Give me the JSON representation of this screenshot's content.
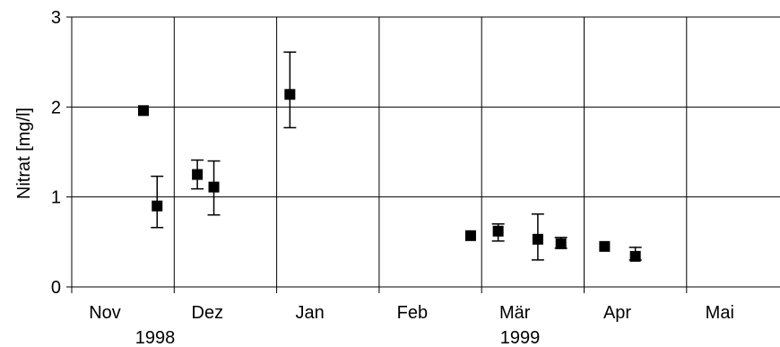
{
  "chart_data": {
    "type": "scatter",
    "title": "",
    "xlabel": "",
    "ylabel": "Nitrat [mg/l]",
    "ylim": [
      0,
      3
    ],
    "yticks": [
      "0",
      "1",
      "2",
      "3"
    ],
    "x_range_months": [
      "Nov 1998",
      "Jun 1999"
    ],
    "months": [
      "Nov",
      "Dez",
      "Jan",
      "Feb",
      "Mär",
      "Apr",
      "Mai"
    ],
    "years": [
      "1998",
      "1999"
    ],
    "grid": true,
    "marker": "square",
    "error_bars": true,
    "points": [
      {
        "x": "1998-11-22",
        "y": 1.96,
        "err_low": 1.96,
        "err_high": 1.96
      },
      {
        "x": "1998-11-26",
        "y": 0.9,
        "err_low": 0.66,
        "err_high": 1.23
      },
      {
        "x": "1998-12-08",
        "y": 1.25,
        "err_low": 1.09,
        "err_high": 1.41
      },
      {
        "x": "1998-12-13",
        "y": 1.11,
        "err_low": 0.8,
        "err_high": 1.4
      },
      {
        "x": "1999-01-05",
        "y": 2.14,
        "err_low": 1.77,
        "err_high": 2.61
      },
      {
        "x": "1999-02-26",
        "y": 0.57,
        "err_low": 0.57,
        "err_high": 0.57
      },
      {
        "x": "1999-03-06",
        "y": 0.62,
        "err_low": 0.51,
        "err_high": 0.7
      },
      {
        "x": "1999-03-18",
        "y": 0.53,
        "err_low": 0.3,
        "err_high": 0.81
      },
      {
        "x": "1999-03-25",
        "y": 0.48,
        "err_low": 0.43,
        "err_high": 0.55
      },
      {
        "x": "1999-04-07",
        "y": 0.45,
        "err_low": 0.45,
        "err_high": 0.45
      },
      {
        "x": "1999-04-16",
        "y": 0.34,
        "err_low": 0.3,
        "err_high": 0.44
      }
    ]
  }
}
